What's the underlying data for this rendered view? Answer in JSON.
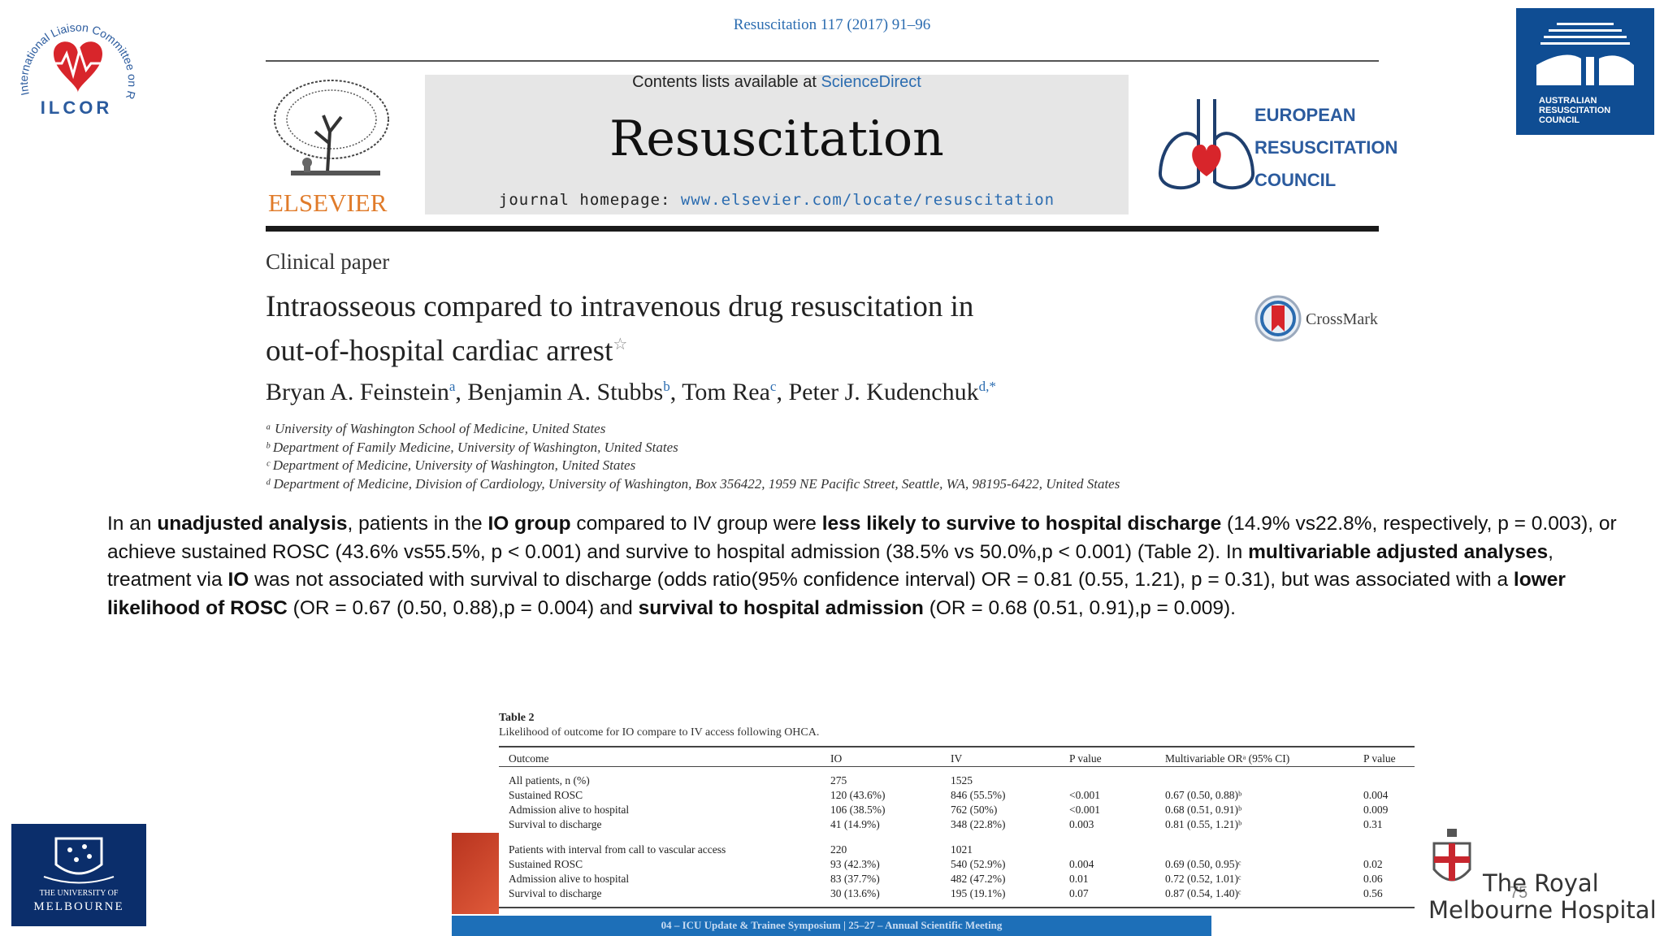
{
  "header": {
    "citation": "Resuscitation 117 (2017) 91–96",
    "contents_prefix": "Contents lists available at ",
    "contents_link": "ScienceDirect",
    "journal_title": "Resuscitation",
    "homepage_prefix": "journal homepage: ",
    "homepage_link": "www.elsevier.com/locate/resuscitation",
    "publisher": "ELSEVIER",
    "erc_line1": "EUROPEAN",
    "erc_line2": "RESUSCITATION",
    "erc_line3": "COUNCIL"
  },
  "logos": {
    "ilcor_ring": "International Liaison Committee on Resuscitation",
    "ilcor_word": "ILCOR",
    "arc_line1": "AUSTRALIAN",
    "arc_line2": "RESUSCITATION",
    "arc_line3": "COUNCIL"
  },
  "article": {
    "section": "Clinical paper",
    "title_line1": "Intraosseous compared to intravenous drug resuscitation in",
    "title_line2": "out-of-hospital cardiac arrest",
    "title_star": "☆",
    "crossmark": "CrossMark",
    "authors": [
      {
        "name": "Bryan A. Feinstein",
        "sup": "a"
      },
      {
        "name": "Benjamin A. Stubbs",
        "sup": "b"
      },
      {
        "name": "Tom Rea",
        "sup": "c"
      },
      {
        "name": "Peter J. Kudenchuk",
        "sup": "d,*"
      }
    ],
    "affiliations": [
      "ᵃ University of Washington School of Medicine, United States",
      "ᵇ Department of Family Medicine, University of Washington, United States",
      "ᶜ Department of Medicine, University of Washington, United States",
      "ᵈ Department of Medicine, Division of Cardiology, University of Washington, Box 356422, 1959 NE Pacific Street, Seattle, WA, 98195-6422, United States"
    ]
  },
  "summary": {
    "s1": "In an ",
    "b1": "unadjusted analysis",
    "s2": ", patients in the ",
    "b2": "IO group",
    "s3": " compared to IV group were ",
    "b3": "less likely to survive to hospital discharge",
    "s4": " (14.9% vs22.8%, respectively, p = 0.003), or achieve sustained ROSC (43.6% vs55.5%, p < 0.001) and survive to hospital admission (38.5% vs 50.0%,p < 0.001) (Table 2). In ",
    "b4": "multivariable adjusted analyses",
    "s5": ", treatment via ",
    "b5": "IO",
    "s6": " was not associated with survival to discharge (odds ratio(95% confidence interval) OR = 0.81 (0.55, 1.21), p = 0.31), but was associated with a ",
    "b6": "lower likelihood of ROSC",
    "s7": " (OR = 0.67 (0.50, 0.88),p = 0.004) and ",
    "b7": "survival to hospital admission",
    "s8": " (OR = 0.68 (0.51, 0.91),p = 0.009)."
  },
  "table": {
    "title": "Table 2",
    "caption": "Likelihood of outcome for IO compare to IV access following OHCA.",
    "headers": [
      "Outcome",
      "IO",
      "IV",
      "P value",
      "Multivariable ORᵃ (95% CI)",
      "P value"
    ],
    "rows": [
      [
        "All patients, n (%)",
        "275",
        "1525",
        "",
        "",
        ""
      ],
      [
        "Sustained ROSC",
        "120 (43.6%)",
        "846 (55.5%)",
        "<0.001",
        "0.67 (0.50, 0.88)ᵇ",
        "0.004"
      ],
      [
        "Admission alive to hospital",
        "106 (38.5%)",
        "762 (50%)",
        "<0.001",
        "0.68 (0.51, 0.91)ᵇ",
        "0.009"
      ],
      [
        "Survival to discharge",
        "41 (14.9%)",
        "348 (22.8%)",
        "0.003",
        "0.81 (0.55, 1.21)ᵇ",
        "0.31"
      ],
      [
        "Patients with interval from call to vascular access",
        "220",
        "1021",
        "",
        "",
        ""
      ],
      [
        "Sustained ROSC",
        "93 (42.3%)",
        "540 (52.9%)",
        "0.004",
        "0.69 (0.50, 0.95)ᶜ",
        "0.02"
      ],
      [
        "Admission alive to hospital",
        "83 (37.7%)",
        "482 (47.2%)",
        "0.01",
        "0.72 (0.52, 1.01)ᶜ",
        "0.06"
      ],
      [
        "Survival to discharge",
        "30 (13.6%)",
        "195 (19.1%)",
        "0.07",
        "0.87 (0.54, 1.40)ᶜ",
        "0.56"
      ]
    ]
  },
  "footer": {
    "bar_text": "04 – ICU Update & Trainee Symposium | 25–27 – Annual Scientific Meeting",
    "slide_number": "75",
    "unimelb_top": "THE UNIVERSITY OF",
    "unimelb_name": "MELBOURNE",
    "rmh_line1": "The Royal",
    "rmh_line2": "Melbourne Hospital"
  },
  "colors": {
    "link_blue": "#2b6cb0",
    "elsevier_orange": "#e07b2a",
    "arc_blue": "#0f4d93",
    "unimelb_navy": "#0b2e6b",
    "footer_blue": "#1d6fb8"
  }
}
